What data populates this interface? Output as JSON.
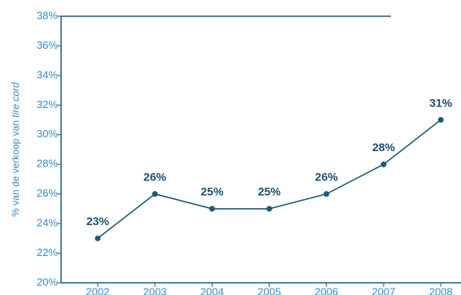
{
  "chart_data": {
    "type": "line",
    "ylabel": "% van de verkoop van ",
    "ylabel_italic": "tire cord",
    "categories": [
      "2002",
      "2003",
      "2004",
      "2005",
      "2006",
      "2007",
      "2008"
    ],
    "series": [
      {
        "name": "tire cord",
        "color": "#1d5a7a",
        "values": [
          23,
          26,
          25,
          25,
          26,
          28,
          31
        ],
        "value_labels": [
          "23%",
          "26%",
          "25%",
          "25%",
          "26%",
          "28%",
          "31%"
        ]
      }
    ],
    "ylim": [
      20,
      38
    ],
    "yticks": [
      {
        "value": 20,
        "label": "20%"
      },
      {
        "value": 22,
        "label": "22%"
      },
      {
        "value": 24,
        "label": "24%"
      },
      {
        "value": 26,
        "label": "26%"
      },
      {
        "value": 28,
        "label": "28%"
      },
      {
        "value": 30,
        "label": "30%"
      },
      {
        "value": 32,
        "label": "32%"
      },
      {
        "value": 34,
        "label": "34%"
      },
      {
        "value": 36,
        "label": "36%"
      },
      {
        "value": 38,
        "label": "38%"
      }
    ],
    "grid": false
  }
}
